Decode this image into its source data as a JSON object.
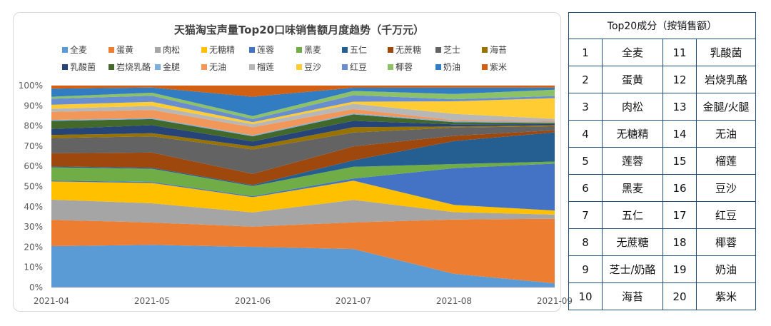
{
  "table": {
    "header": "Top20成分（按销售额）",
    "rows": [
      {
        "rank1": "1",
        "name1": "全麦",
        "rank2": "11",
        "name2": "乳酸菌"
      },
      {
        "rank1": "2",
        "name1": "蛋黄",
        "rank2": "12",
        "name2": "岩烧乳酪"
      },
      {
        "rank1": "3",
        "name1": "肉松",
        "rank2": "13",
        "name2": "金腿/火腿"
      },
      {
        "rank1": "4",
        "name1": "无糖精",
        "rank2": "14",
        "name2": "无油"
      },
      {
        "rank1": "5",
        "name1": "莲蓉",
        "rank2": "15",
        "name2": "榴莲"
      },
      {
        "rank1": "6",
        "name1": "黑麦",
        "rank2": "16",
        "name2": "豆沙"
      },
      {
        "rank1": "7",
        "name1": "五仁",
        "rank2": "17",
        "name2": "红豆"
      },
      {
        "rank1": "8",
        "name1": "无蔗糖",
        "rank2": "18",
        "name2": "椰蓉"
      },
      {
        "rank1": "9",
        "name1": "芝士/奶酪",
        "rank2": "19",
        "name2": "奶油"
      },
      {
        "rank1": "10",
        "name1": "海苔",
        "rank2": "20",
        "name2": "紫米"
      }
    ]
  },
  "chart_data": {
    "type": "area",
    "stacked": "percent",
    "title": "天猫淘宝声量Top20口味销售额月度趋势（千万元）",
    "xlabel": "",
    "ylabel": "",
    "x": [
      "2021-04",
      "2021-05",
      "2021-06",
      "2021-07",
      "2021-08",
      "2021-09"
    ],
    "ylim": [
      0,
      100
    ],
    "yticks": [
      "0%",
      "10%",
      "20%",
      "30%",
      "40%",
      "50%",
      "60%",
      "70%",
      "80%",
      "90%",
      "100%"
    ],
    "legend_position": "top",
    "series": [
      {
        "name": "全麦",
        "color": "#5b9bd5",
        "values": [
          20.5,
          21,
          20,
          18,
          6.5,
          2
        ]
      },
      {
        "name": "蛋黄",
        "color": "#ed7d31",
        "values": [
          13,
          11,
          10,
          12.5,
          26,
          31
        ]
      },
      {
        "name": "肉松",
        "color": "#a5a5a5",
        "values": [
          10,
          9.5,
          7,
          10.5,
          3.5,
          2
        ]
      },
      {
        "name": "无糖精",
        "color": "#ffc000",
        "values": [
          9,
          10,
          7.5,
          9,
          3.5,
          2
        ]
      },
      {
        "name": "莲蓉",
        "color": "#4472c4",
        "values": [
          0.5,
          0.5,
          0.5,
          1,
          17.5,
          22.5
        ]
      },
      {
        "name": "黑麦",
        "color": "#70ad47",
        "values": [
          6.5,
          6.5,
          5,
          5.5,
          2,
          1
        ]
      },
      {
        "name": "五仁",
        "color": "#255e91",
        "values": [
          0.5,
          0.5,
          0.5,
          3,
          11,
          14
        ]
      },
      {
        "name": "无蔗糖",
        "color": "#9e480e",
        "values": [
          6.5,
          7.5,
          5.5,
          6.5,
          2.5,
          1
        ]
      },
      {
        "name": "芝士",
        "color": "#636363",
        "values": [
          7.5,
          8,
          12,
          6.5,
          4,
          2
        ]
      },
      {
        "name": "海苔",
        "color": "#997300",
        "values": [
          1.5,
          1.5,
          1.5,
          2.5,
          0.5,
          0.5
        ]
      },
      {
        "name": "乳酸菌",
        "color": "#264478",
        "values": [
          3,
          4,
          2.5,
          3,
          1,
          0.5
        ]
      },
      {
        "name": "岩烧乳酪",
        "color": "#43682b",
        "values": [
          4,
          3,
          2.5,
          3,
          1,
          0.5
        ]
      },
      {
        "name": "金腿",
        "color": "#7cafdd",
        "values": [
          0.5,
          0.5,
          0.5,
          0.5,
          0.5,
          0.5
        ]
      },
      {
        "name": "无油",
        "color": "#f1975a",
        "values": [
          4,
          4,
          4,
          2,
          0.5,
          0.5
        ]
      },
      {
        "name": "榴莲",
        "color": "#b7b7b7",
        "values": [
          1.5,
          2,
          1.5,
          2.5,
          3,
          1
        ]
      },
      {
        "name": "豆沙",
        "color": "#ffcd33",
        "values": [
          2,
          2,
          1,
          1,
          6,
          10
        ]
      },
      {
        "name": "红豆",
        "color": "#698ed0",
        "values": [
          3,
          3,
          1.5,
          3,
          1,
          1
        ]
      },
      {
        "name": "椰蓉",
        "color": "#8cc168",
        "values": [
          1,
          1.5,
          1.5,
          2,
          2.5,
          3
        ]
      },
      {
        "name": "奶油",
        "color": "#327dc2",
        "values": [
          4,
          2.5,
          9.5,
          1.5,
          3,
          1
        ]
      },
      {
        "name": "紫米",
        "color": "#d26012",
        "values": [
          1.5,
          1,
          5.5,
          1,
          1,
          1
        ]
      }
    ]
  }
}
